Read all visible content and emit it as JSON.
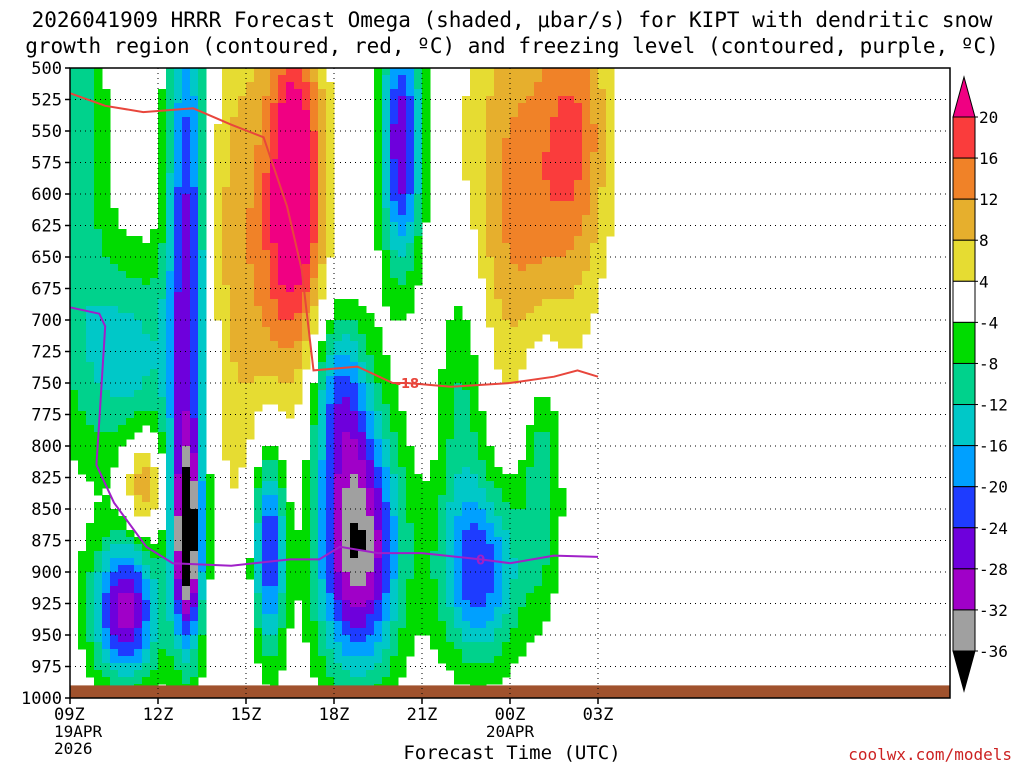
{
  "chart_data": {
    "type": "heatmap",
    "title": "2026041909 HRRR Forecast Omega (shaded, μbar/s) for KIPT with dendritic snow",
    "subtitle": "growth region (contoured, red, ºC) and freezing level (contoured, purple, ºC)",
    "xlabel": "Forecast Time (UTC)",
    "ylabel": "",
    "credit": "coolwx.com/models",
    "x_range_hours": [
      0,
      30
    ],
    "y_range_hPa": [
      500,
      1000
    ],
    "x_ticks": [
      {
        "hour": 0,
        "label": "09Z",
        "sub1": "19APR",
        "sub2": "2026"
      },
      {
        "hour": 3,
        "label": "12Z",
        "sub1": "",
        "sub2": ""
      },
      {
        "hour": 6,
        "label": "15Z",
        "sub1": "",
        "sub2": ""
      },
      {
        "hour": 9,
        "label": "18Z",
        "sub1": "",
        "sub2": ""
      },
      {
        "hour": 12,
        "label": "21Z",
        "sub1": "",
        "sub2": ""
      },
      {
        "hour": 15,
        "label": "00Z",
        "sub1": "20APR",
        "sub2": ""
      },
      {
        "hour": 18,
        "label": "03Z",
        "sub1": "",
        "sub2": ""
      }
    ],
    "y_ticks": [
      500,
      525,
      550,
      575,
      600,
      625,
      650,
      675,
      700,
      725,
      750,
      775,
      800,
      825,
      850,
      875,
      900,
      925,
      950,
      975,
      1000
    ],
    "grid": true,
    "colorbar": {
      "position": "right",
      "levels": [
        -36,
        -32,
        -28,
        -24,
        -20,
        -16,
        -12,
        -8,
        -4,
        4,
        8,
        12,
        16,
        20
      ],
      "labels": [
        "20",
        "16",
        "12",
        "8",
        "4",
        "-4",
        "-8",
        "-12",
        "-16",
        "-20",
        "-24",
        "-28",
        "-32",
        "-36"
      ],
      "colors": [
        "#000000",
        "#a0a0a0",
        "#a000c8",
        "#6e00dc",
        "#1e3cff",
        "#00a0ff",
        "#00c8c8",
        "#00d28c",
        "#00dc00",
        "#ffffff",
        "#e6dc32",
        "#e6af2d",
        "#f08228",
        "#fa3c3c",
        "#f00082"
      ]
    },
    "omega_centers": [
      {
        "hour": 0.3,
        "p": 560,
        "value": -10,
        "sx": 0.7,
        "sy": 150
      },
      {
        "hour": 2.0,
        "p": 730,
        "value": -14,
        "sx": 1.2,
        "sy": 60
      },
      {
        "hour": 4.0,
        "p": 650,
        "value": -28,
        "sx": 0.5,
        "sy": 170
      },
      {
        "hour": 1.9,
        "p": 930,
        "value": -30,
        "sx": 0.8,
        "sy": 40
      },
      {
        "hour": 2.5,
        "p": 830,
        "value": 14,
        "sx": 0.5,
        "sy": 30
      },
      {
        "hour": 4.0,
        "p": 875,
        "value": -34,
        "sx": 0.35,
        "sy": 55
      },
      {
        "hour": 5.7,
        "p": 640,
        "value": 9,
        "sx": 1.2,
        "sy": 150
      },
      {
        "hour": 7.7,
        "p": 585,
        "value": 21,
        "sx": 0.6,
        "sy": 80
      },
      {
        "hour": 7.5,
        "p": 640,
        "value": 8,
        "sx": 1.0,
        "sy": 120
      },
      {
        "hour": 6.8,
        "p": 880,
        "value": -26,
        "sx": 0.4,
        "sy": 60
      },
      {
        "hour": 9.8,
        "p": 880,
        "value": -36,
        "sx": 1.0,
        "sy": 70
      },
      {
        "hour": 9.2,
        "p": 760,
        "value": -18,
        "sx": 0.7,
        "sy": 50
      },
      {
        "hour": 11.3,
        "p": 560,
        "value": -28,
        "sx": 0.5,
        "sy": 70
      },
      {
        "hour": 14.0,
        "p": 900,
        "value": -22,
        "sx": 1.0,
        "sy": 50
      },
      {
        "hour": 13.4,
        "p": 760,
        "value": -10,
        "sx": 0.6,
        "sy": 90
      },
      {
        "hour": 15.4,
        "p": 600,
        "value": 14,
        "sx": 1.4,
        "sy": 110
      },
      {
        "hour": 17.3,
        "p": 550,
        "value": 12,
        "sx": 0.8,
        "sy": 80
      },
      {
        "hour": 16.1,
        "p": 820,
        "value": -12,
        "sx": 0.5,
        "sy": 70
      }
    ],
    "dendritic_line": {
      "name": "-18",
      "hours": [
        0,
        1.2,
        2.5,
        4.2,
        5.5,
        6.6,
        7.4,
        7.9,
        8.3,
        9.8,
        11.0,
        11.5,
        13.0,
        15.0,
        16.5,
        17.3,
        18.0
      ],
      "p": [
        520,
        530,
        535,
        532,
        545,
        555,
        610,
        660,
        740,
        737,
        750,
        750,
        753,
        750,
        745,
        740,
        745
      ]
    },
    "freezing_line": {
      "name": "0",
      "hours": [
        0,
        1.0,
        1.2,
        1.0,
        0.9,
        1.5,
        2.6,
        3.5,
        5.5,
        7.5,
        8.5,
        9.2,
        10.5,
        12.0,
        14.0,
        15.0,
        16.5,
        18.0
      ],
      "p": [
        690,
        695,
        705,
        780,
        815,
        845,
        880,
        893,
        895,
        890,
        890,
        880,
        885,
        885,
        890,
        893,
        887,
        888
      ]
    },
    "terrain_p": 990
  }
}
